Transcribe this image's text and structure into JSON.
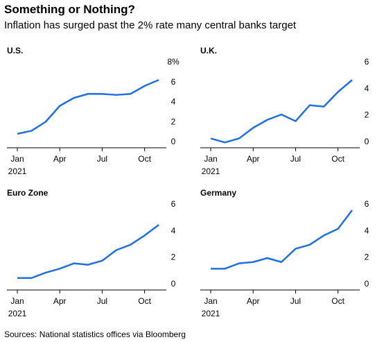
{
  "title": "Something or Nothing?",
  "subtitle": "Inflation has surged past the 2% rate many central banks target",
  "source": "Sources: National statistics offices via Bloomberg",
  "chart_data": [
    {
      "type": "line",
      "title": "U.S.",
      "categories": [
        "Jan",
        null,
        null,
        "Apr",
        null,
        null,
        "Jul",
        null,
        null,
        "Oct",
        null
      ],
      "year": "2021",
      "series": [
        {
          "color": "#1f6fe5",
          "values": [
            1.4,
            1.7,
            2.6,
            4.2,
            5.0,
            5.4,
            5.4,
            5.3,
            5.4,
            6.2,
            6.8
          ]
        }
      ],
      "ylim": [
        0,
        8
      ],
      "yticks": [
        0,
        2,
        4,
        6,
        {
          "value": 8,
          "label": "8%"
        }
      ]
    },
    {
      "type": "line",
      "title": "U.K.",
      "categories": [
        "Jan",
        null,
        null,
        "Apr",
        null,
        null,
        "Jul",
        null,
        null,
        "Oct",
        null
      ],
      "year": "2021",
      "series": [
        {
          "color": "#1f6fe5",
          "values": [
            0.7,
            0.4,
            0.7,
            1.5,
            2.1,
            2.5,
            2.0,
            3.2,
            3.1,
            4.2,
            5.1
          ]
        }
      ],
      "ylim": [
        0,
        6
      ],
      "yticks": [
        0,
        2,
        4,
        6
      ]
    },
    {
      "type": "line",
      "title": "Euro Zone",
      "categories": [
        "Jan",
        null,
        null,
        "Apr",
        null,
        null,
        "Jul",
        null,
        null,
        "Oct",
        null
      ],
      "year": "2021",
      "series": [
        {
          "color": "#1f6fe5",
          "values": [
            0.9,
            0.9,
            1.3,
            1.6,
            2.0,
            1.9,
            2.2,
            3.0,
            3.4,
            4.1,
            4.9
          ]
        }
      ],
      "ylim": [
        0,
        6
      ],
      "yticks": [
        0,
        2,
        4,
        6
      ]
    },
    {
      "type": "line",
      "title": "Germany",
      "categories": [
        "Jan",
        null,
        null,
        "Apr",
        null,
        null,
        "Jul",
        null,
        null,
        "Oct",
        null
      ],
      "year": "2021",
      "series": [
        {
          "color": "#1f6fe5",
          "values": [
            1.6,
            1.6,
            2.0,
            2.1,
            2.4,
            2.1,
            3.1,
            3.4,
            4.1,
            4.6,
            6.0
          ]
        }
      ],
      "ylim": [
        0,
        6
      ],
      "yticks": [
        0,
        2,
        4,
        6
      ]
    }
  ]
}
